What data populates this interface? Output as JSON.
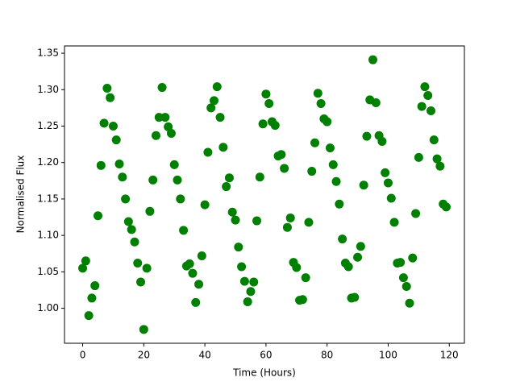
{
  "chart_data": {
    "type": "scatter",
    "xlabel": "Time (Hours)",
    "ylabel": "Normalised Flux",
    "color": "#008000",
    "x": [
      0,
      1,
      2,
      3,
      4,
      5,
      6,
      7,
      8,
      9,
      10,
      11,
      12,
      13,
      14,
      15,
      16,
      17,
      18,
      19,
      20,
      21,
      22,
      23,
      24,
      25,
      26,
      27,
      28,
      29,
      30,
      31,
      32,
      33,
      34,
      35,
      36,
      37,
      38,
      39,
      40,
      41,
      42,
      43,
      44,
      45,
      46,
      47,
      48,
      49,
      50,
      51,
      52,
      53,
      54,
      55,
      56,
      57,
      58,
      59,
      60,
      61,
      62,
      63,
      64,
      65,
      66,
      67,
      68,
      69,
      70,
      71,
      72,
      73,
      74,
      75,
      76,
      77,
      78,
      79,
      80,
      81,
      82,
      83,
      84,
      85,
      86,
      87,
      88,
      89,
      90,
      91,
      92,
      93,
      94,
      95,
      96,
      97,
      98,
      99,
      100,
      101,
      102,
      103,
      104,
      105,
      106,
      107,
      108,
      109,
      110,
      111,
      112,
      113,
      114,
      115,
      116,
      117,
      118,
      119
    ],
    "values": [
      1.055,
      1.065,
      0.99,
      1.014,
      1.031,
      1.127,
      1.196,
      1.254,
      1.302,
      1.289,
      1.25,
      1.231,
      1.198,
      1.18,
      1.15,
      1.119,
      1.108,
      1.091,
      1.062,
      1.036,
      0.971,
      1.055,
      1.133,
      1.176,
      1.237,
      1.262,
      1.303,
      1.262,
      1.249,
      1.24,
      1.197,
      1.176,
      1.15,
      1.107,
      1.058,
      1.061,
      1.048,
      1.008,
      1.033,
      1.072,
      1.142,
      1.214,
      1.275,
      1.285,
      1.304,
      1.262,
      1.221,
      1.167,
      1.179,
      1.132,
      1.121,
      1.084,
      1.057,
      1.037,
      1.009,
      1.023,
      1.036,
      1.12,
      1.18,
      1.253,
      1.294,
      1.281,
      1.256,
      1.251,
      1.209,
      1.211,
      1.192,
      1.111,
      1.124,
      1.063,
      1.056,
      1.011,
      1.012,
      1.042,
      1.118,
      1.188,
      1.227,
      1.295,
      1.281,
      1.26,
      1.256,
      1.22,
      1.197,
      1.174,
      1.143,
      1.095,
      1.062,
      1.057,
      1.014,
      1.015,
      1.07,
      1.085,
      1.169,
      1.236,
      1.286,
      1.341,
      1.282,
      1.237,
      1.229,
      1.186,
      1.172,
      1.151,
      1.118,
      1.062,
      1.063,
      1.042,
      1.03,
      1.007,
      1.069,
      1.13,
      1.207,
      1.277,
      1.304,
      1.292,
      1.271,
      1.231,
      1.205,
      1.195,
      1.143,
      1.139
    ],
    "xlim": [
      -5.95,
      124.95
    ],
    "xticks": [
      0,
      20,
      40,
      60,
      80,
      100,
      120
    ],
    "ylim": [
      0.952,
      1.36
    ],
    "yticks": [
      {
        "value": 1.0,
        "label": "1.00"
      },
      {
        "value": 1.05,
        "label": "1.05"
      },
      {
        "value": 1.1,
        "label": "1.10"
      },
      {
        "value": 1.15,
        "label": "1.15"
      },
      {
        "value": 1.2,
        "label": "1.20"
      },
      {
        "value": 1.25,
        "label": "1.25"
      },
      {
        "value": 1.3,
        "label": "1.30"
      },
      {
        "value": 1.35,
        "label": "1.35"
      }
    ]
  }
}
